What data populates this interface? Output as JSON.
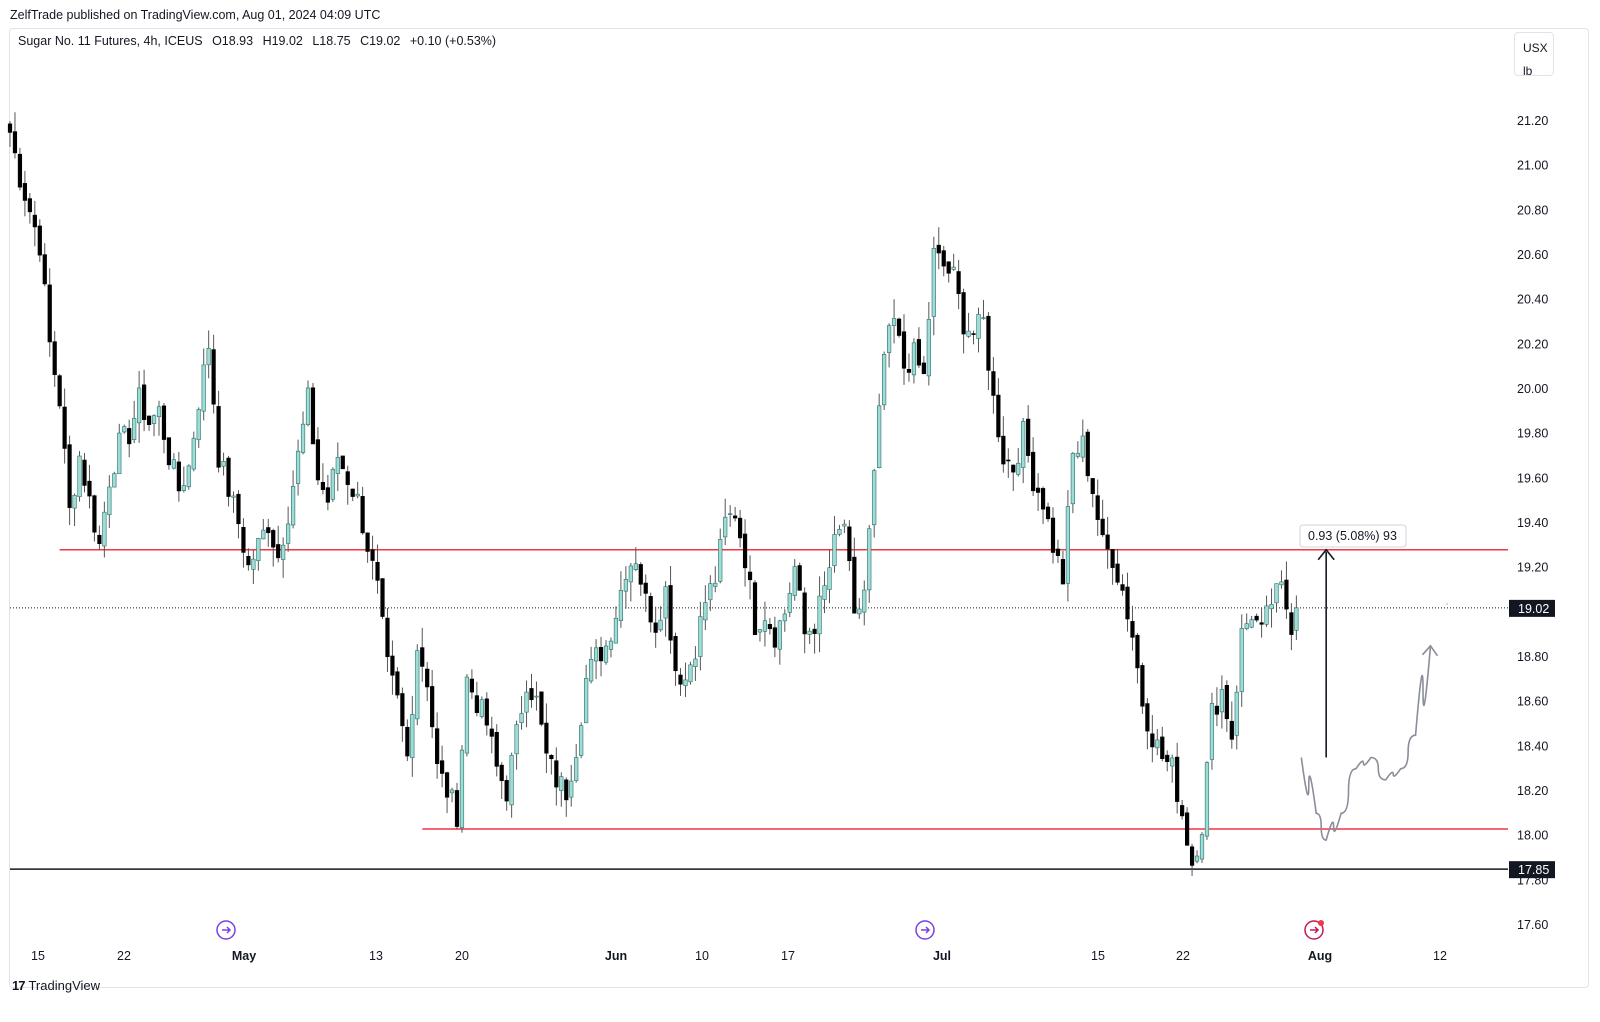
{
  "header": {
    "published_by": "ZelfTrade published on TradingView.com, Aug 01, 2024 04:09 UTC"
  },
  "legend": {
    "symbol": "Sugar No. 11 Futures, 4h, ICEUS",
    "open": "O18.93",
    "high": "H19.02",
    "low": "L18.75",
    "close": "C19.02",
    "change": "+0.10 (+0.53%)"
  },
  "unit": {
    "currency": "USX",
    "measure": "lb"
  },
  "brand": {
    "name": "TradingView"
  },
  "colors": {
    "up_candle": "#9edcd6",
    "down_candle": "#000000",
    "horizontal_line": "#f23645",
    "trend_line": "#131722"
  },
  "chart_data": {
    "type": "candlestick",
    "title": "Sugar No. 11 Futures, 4h, ICEUS",
    "y_axis": {
      "range": [
        17.6,
        21.3
      ],
      "ticks": [
        "21.20",
        "21.00",
        "20.80",
        "20.60",
        "20.40",
        "20.20",
        "20.00",
        "19.80",
        "19.60",
        "19.40",
        "19.20",
        "18.80",
        "18.60",
        "18.40",
        "18.20",
        "18.00",
        "17.80",
        "17.60"
      ],
      "current_price_label": "19.02",
      "line_price_label": "17.85"
    },
    "x_axis": {
      "labels": [
        {
          "text": "15",
          "bold": false
        },
        {
          "text": "22",
          "bold": false
        },
        {
          "text": "May",
          "bold": true
        },
        {
          "text": "13",
          "bold": false
        },
        {
          "text": "20",
          "bold": false
        },
        {
          "text": "Jun",
          "bold": true
        },
        {
          "text": "10",
          "bold": false
        },
        {
          "text": "17",
          "bold": false
        },
        {
          "text": "Jul",
          "bold": true
        },
        {
          "text": "15",
          "bold": false
        },
        {
          "text": "22",
          "bold": false
        },
        {
          "text": "Aug",
          "bold": true
        },
        {
          "text": "12",
          "bold": false
        }
      ]
    },
    "close_path": [
      [
        0,
        21.15
      ],
      [
        2,
        20.95
      ],
      [
        4,
        20.8
      ],
      [
        6,
        20.65
      ],
      [
        8,
        20.2
      ],
      [
        10,
        19.95
      ],
      [
        12,
        19.45
      ],
      [
        14,
        19.7
      ],
      [
        16,
        19.5
      ],
      [
        18,
        19.3
      ],
      [
        20,
        19.6
      ],
      [
        22,
        19.75
      ],
      [
        24,
        19.8
      ],
      [
        26,
        19.95
      ],
      [
        28,
        19.85
      ],
      [
        30,
        19.9
      ],
      [
        32,
        19.7
      ],
      [
        34,
        19.55
      ],
      [
        36,
        19.65
      ],
      [
        38,
        19.95
      ],
      [
        40,
        20.2
      ],
      [
        42,
        19.7
      ],
      [
        44,
        19.55
      ],
      [
        46,
        19.4
      ],
      [
        48,
        19.2
      ],
      [
        50,
        19.3
      ],
      [
        52,
        19.4
      ],
      [
        54,
        19.25
      ],
      [
        56,
        19.45
      ],
      [
        58,
        19.7
      ],
      [
        60,
        19.95
      ],
      [
        62,
        19.6
      ],
      [
        64,
        19.5
      ],
      [
        66,
        19.7
      ],
      [
        68,
        19.6
      ],
      [
        70,
        19.5
      ],
      [
        72,
        19.3
      ],
      [
        74,
        19.1
      ],
      [
        76,
        18.75
      ],
      [
        78,
        18.6
      ],
      [
        80,
        18.35
      ],
      [
        82,
        18.85
      ],
      [
        84,
        18.7
      ],
      [
        86,
        18.3
      ],
      [
        88,
        18.2
      ],
      [
        90,
        18.1
      ],
      [
        92,
        18.7
      ],
      [
        94,
        18.6
      ],
      [
        96,
        18.5
      ],
      [
        98,
        18.3
      ],
      [
        100,
        18.2
      ],
      [
        102,
        18.45
      ],
      [
        104,
        18.7
      ],
      [
        106,
        18.6
      ],
      [
        108,
        18.35
      ],
      [
        110,
        18.25
      ],
      [
        112,
        18.2
      ],
      [
        114,
        18.4
      ],
      [
        116,
        18.7
      ],
      [
        118,
        18.8
      ],
      [
        120,
        18.85
      ],
      [
        122,
        19.0
      ],
      [
        124,
        19.2
      ],
      [
        126,
        19.25
      ],
      [
        128,
        19.05
      ],
      [
        130,
        18.95
      ],
      [
        132,
        19.1
      ],
      [
        134,
        18.75
      ],
      [
        136,
        18.7
      ],
      [
        138,
        18.85
      ],
      [
        140,
        19.05
      ],
      [
        142,
        19.15
      ],
      [
        144,
        19.4
      ],
      [
        146,
        19.45
      ],
      [
        148,
        19.25
      ],
      [
        150,
        18.95
      ],
      [
        152,
        19.0
      ],
      [
        154,
        18.9
      ],
      [
        156,
        19.0
      ],
      [
        158,
        19.2
      ],
      [
        160,
        18.9
      ],
      [
        162,
        18.95
      ],
      [
        164,
        19.1
      ],
      [
        166,
        19.3
      ],
      [
        168,
        19.4
      ],
      [
        170,
        18.95
      ],
      [
        172,
        19.1
      ],
      [
        174,
        19.6
      ],
      [
        176,
        20.15
      ],
      [
        178,
        20.3
      ],
      [
        180,
        20.1
      ],
      [
        182,
        20.15
      ],
      [
        184,
        20.05
      ],
      [
        186,
        20.6
      ],
      [
        188,
        20.55
      ],
      [
        190,
        20.5
      ],
      [
        192,
        20.3
      ],
      [
        194,
        20.25
      ],
      [
        196,
        20.3
      ],
      [
        198,
        19.95
      ],
      [
        200,
        19.7
      ],
      [
        202,
        19.65
      ],
      [
        204,
        19.8
      ],
      [
        206,
        19.6
      ],
      [
        208,
        19.5
      ],
      [
        210,
        19.3
      ],
      [
        212,
        19.15
      ],
      [
        214,
        19.7
      ],
      [
        216,
        19.75
      ],
      [
        218,
        19.55
      ],
      [
        220,
        19.3
      ],
      [
        222,
        19.25
      ],
      [
        224,
        19.1
      ],
      [
        226,
        18.9
      ],
      [
        228,
        18.6
      ],
      [
        230,
        18.45
      ],
      [
        232,
        18.35
      ],
      [
        234,
        18.3
      ],
      [
        236,
        18.1
      ],
      [
        238,
        17.88
      ],
      [
        240,
        18.05
      ],
      [
        242,
        18.55
      ],
      [
        244,
        18.65
      ],
      [
        246,
        18.45
      ],
      [
        248,
        18.9
      ],
      [
        250,
        19.0
      ],
      [
        252,
        18.9
      ],
      [
        254,
        19.05
      ],
      [
        256,
        19.1
      ],
      [
        258,
        18.95
      ],
      [
        259,
        19.02
      ]
    ],
    "x_domain": [
      0,
      300
    ],
    "horizontal_lines": [
      {
        "price": 19.28,
        "from_index": 10,
        "color": "red"
      },
      {
        "price": 18.03,
        "from_index": 83,
        "color": "red"
      },
      {
        "price": 17.85,
        "from_index": 0,
        "color": "dark"
      }
    ],
    "current_price_line": 19.02,
    "measurement": {
      "label": "0.93 (5.08%) 93",
      "arrow_from_price": 18.35,
      "arrow_to_price": 19.28,
      "arrow_index": 265
    },
    "projection_path": [
      [
        260,
        18.35
      ],
      [
        263,
        18.1
      ],
      [
        265,
        17.98
      ],
      [
        268,
        18.1
      ],
      [
        271,
        18.3
      ],
      [
        274,
        18.35
      ],
      [
        277,
        18.25
      ],
      [
        280,
        18.3
      ],
      [
        283,
        18.45
      ],
      [
        286,
        18.85
      ]
    ]
  }
}
